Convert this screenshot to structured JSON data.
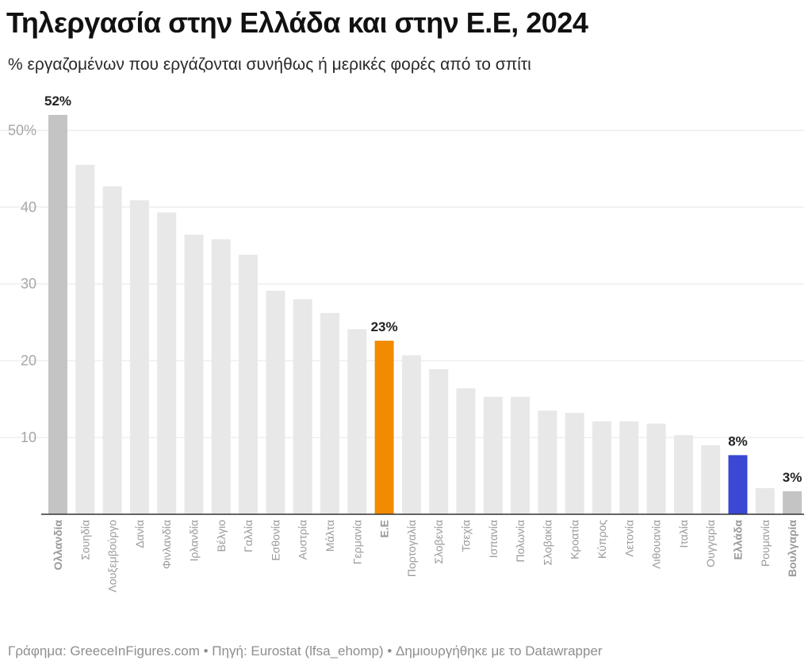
{
  "title": "Τηλεργασία στην Ελλάδα και στην Ε.Ε, 2024",
  "subtitle": "% εργαζομένων που εργάζονται συνήθως ή μερικές φορές από το σπίτι",
  "footer": "Γράφημα: GreeceInFigures.com • Πηγή: Eurostat (lfsa_ehomp) • Δημιουργήθηκε με το Datawrapper",
  "colors": {
    "default_bar": "#e8e8e8",
    "highlight_max": "#c4c4c4",
    "highlight_min": "#c4c4c4",
    "eu": "#f38b00",
    "greece": "#3a48d4",
    "grid": "#e6e6e6",
    "axis": "#333333"
  },
  "chart_data": {
    "type": "bar",
    "title": "Τηλεργασία στην Ελλάδα και στην Ε.Ε, 2024",
    "subtitle": "% εργαζομένων που εργάζονται συνήθως ή μερικές φορές από το σπίτι",
    "xlabel": "",
    "ylabel": "",
    "ylim": [
      0,
      55
    ],
    "yticks": [
      10,
      20,
      30,
      40,
      50
    ],
    "ytick_labels": [
      "10",
      "20",
      "30",
      "40",
      "50%"
    ],
    "grid": true,
    "categories": [
      "Ολλανδία",
      "Σουηδία",
      "Λουξεμβούργο",
      "Δανία",
      "Φινλανδία",
      "Ιρλανδία",
      "Βέλγιο",
      "Γαλλία",
      "Εσθονία",
      "Αυστρία",
      "Μάλτα",
      "Γερμανία",
      "Ε.Ε",
      "Πορτογαλία",
      "Σλοβενία",
      "Τσεχία",
      "Ισπανία",
      "Πολωνία",
      "Σλοβακία",
      "Κροατία",
      "Κύπρος",
      "Λετονία",
      "Λιθουανία",
      "Ιταλία",
      "Ουγγαρία",
      "Ελλάδα",
      "Ρουμανία",
      "Βουλγαρία"
    ],
    "values": [
      52,
      45.5,
      42.7,
      40.9,
      39.3,
      36.4,
      35.8,
      33.8,
      29.1,
      28,
      26.2,
      24.1,
      22.6,
      20.7,
      18.9,
      16.4,
      15.3,
      15.3,
      13.5,
      13.2,
      12.1,
      12.1,
      11.8,
      10.3,
      9,
      7.7,
      3.4,
      3
    ],
    "highlights": [
      {
        "category": "Ολλανδία",
        "label": "52%",
        "color_key": "highlight_max"
      },
      {
        "category": "Ε.Ε",
        "label": "23%",
        "color_key": "eu"
      },
      {
        "category": "Ελλάδα",
        "label": "8%",
        "color_key": "greece"
      },
      {
        "category": "Βουλγαρία",
        "label": "3%",
        "color_key": "highlight_min"
      }
    ]
  }
}
